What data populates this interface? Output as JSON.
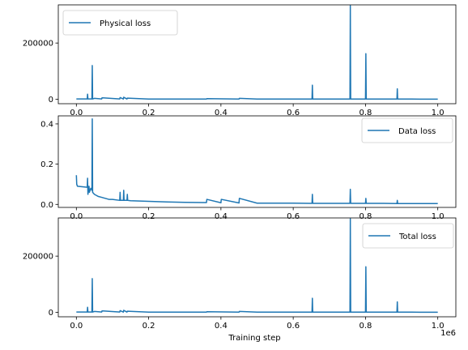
{
  "chart_data": {
    "type": "line",
    "colors": {
      "series": "#1f77b4"
    },
    "xlabel": "Training step",
    "x_offset_text": "1e6",
    "x_ticks": [
      "0.0",
      "0.2",
      "0.4",
      "0.6",
      "0.8",
      "1.0"
    ],
    "x_tick_values": [
      0.0,
      0.2,
      0.4,
      0.6,
      0.8,
      1.0
    ],
    "xlim": [
      -0.05,
      1.05
    ],
    "x_units_multiplier": 1000000,
    "panels": [
      {
        "legend": "Physical loss",
        "legend_loc": "upper left",
        "ylim": [
          -16000,
          336000
        ],
        "y_ticks": [
          "0",
          "200000"
        ],
        "y_tick_values": [
          0,
          200000
        ],
        "series": [
          {
            "name": "Physical loss",
            "x": [
              0.0,
              0.03,
              0.031,
              0.032,
              0.043,
              0.044,
              0.045,
              0.05,
              0.07,
              0.071,
              0.12,
              0.121,
              0.13,
              0.131,
              0.14,
              0.141,
              0.2,
              0.3,
              0.36,
              0.361,
              0.45,
              0.451,
              0.5,
              0.652,
              0.653,
              0.654,
              0.7,
              0.757,
              0.758,
              0.759,
              0.8,
              0.801,
              0.802,
              0.85,
              0.887,
              0.888,
              0.889,
              0.95,
              1.0
            ],
            "y": [
              800,
              800,
              18000,
              800,
              800,
              120000,
              800,
              3000,
              800,
              5000,
              800,
              6000,
              800,
              7000,
              800,
              4000,
              700,
              600,
              600,
              2000,
              600,
              3000,
              500,
              500,
              50000,
              500,
              500,
              500,
              333000,
              500,
              500,
              162000,
              500,
              500,
              500,
              37000,
              500,
              400,
              400
            ]
          }
        ]
      },
      {
        "legend": "Data loss",
        "legend_loc": "upper right",
        "ylim": [
          -0.015,
          0.44
        ],
        "y_ticks": [
          "0.0",
          "0.2",
          "0.4"
        ],
        "y_tick_values": [
          0.0,
          0.2,
          0.4
        ],
        "series": [
          {
            "name": "Data loss",
            "x": [
              0.0,
              0.001,
              0.003,
              0.03,
              0.031,
              0.032,
              0.035,
              0.036,
              0.04,
              0.043,
              0.044,
              0.045,
              0.05,
              0.055,
              0.06,
              0.07,
              0.08,
              0.09,
              0.1,
              0.12,
              0.121,
              0.122,
              0.13,
              0.131,
              0.132,
              0.14,
              0.141,
              0.142,
              0.15,
              0.2,
              0.25,
              0.3,
              0.35,
              0.36,
              0.361,
              0.4,
              0.401,
              0.45,
              0.451,
              0.5,
              0.55,
              0.6,
              0.652,
              0.653,
              0.654,
              0.7,
              0.757,
              0.758,
              0.759,
              0.8,
              0.801,
              0.802,
              0.85,
              0.887,
              0.888,
              0.889,
              0.95,
              1.0
            ],
            "y": [
              0.145,
              0.1,
              0.09,
              0.085,
              0.13,
              0.05,
              0.09,
              0.06,
              0.08,
              0.07,
              0.425,
              0.06,
              0.05,
              0.045,
              0.04,
              0.035,
              0.03,
              0.025,
              0.025,
              0.02,
              0.06,
              0.02,
              0.02,
              0.07,
              0.02,
              0.02,
              0.05,
              0.02,
              0.018,
              0.015,
              0.012,
              0.01,
              0.009,
              0.009,
              0.025,
              0.008,
              0.025,
              0.007,
              0.03,
              0.006,
              0.006,
              0.006,
              0.005,
              0.05,
              0.005,
              0.005,
              0.005,
              0.075,
              0.005,
              0.005,
              0.03,
              0.005,
              0.005,
              0.004,
              0.02,
              0.004,
              0.004,
              0.004
            ]
          }
        ]
      },
      {
        "legend": "Total loss",
        "legend_loc": "upper right",
        "ylim": [
          -16000,
          336000
        ],
        "y_ticks": [
          "0",
          "200000"
        ],
        "y_tick_values": [
          0,
          200000
        ],
        "series": [
          {
            "name": "Total loss",
            "x": [
              0.0,
              0.03,
              0.031,
              0.032,
              0.043,
              0.044,
              0.045,
              0.05,
              0.07,
              0.071,
              0.12,
              0.121,
              0.13,
              0.131,
              0.14,
              0.141,
              0.2,
              0.3,
              0.36,
              0.361,
              0.45,
              0.451,
              0.5,
              0.652,
              0.653,
              0.654,
              0.7,
              0.757,
              0.758,
              0.759,
              0.8,
              0.801,
              0.802,
              0.85,
              0.887,
              0.888,
              0.889,
              0.95,
              1.0
            ],
            "y": [
              800,
              800,
              18000,
              800,
              800,
              120000,
              800,
              3000,
              800,
              5000,
              800,
              6000,
              800,
              7000,
              800,
              4000,
              700,
              600,
              600,
              2000,
              600,
              3000,
              500,
              500,
              50000,
              500,
              500,
              500,
              333000,
              500,
              500,
              162000,
              500,
              500,
              500,
              37000,
              500,
              400,
              400
            ]
          }
        ]
      }
    ]
  }
}
